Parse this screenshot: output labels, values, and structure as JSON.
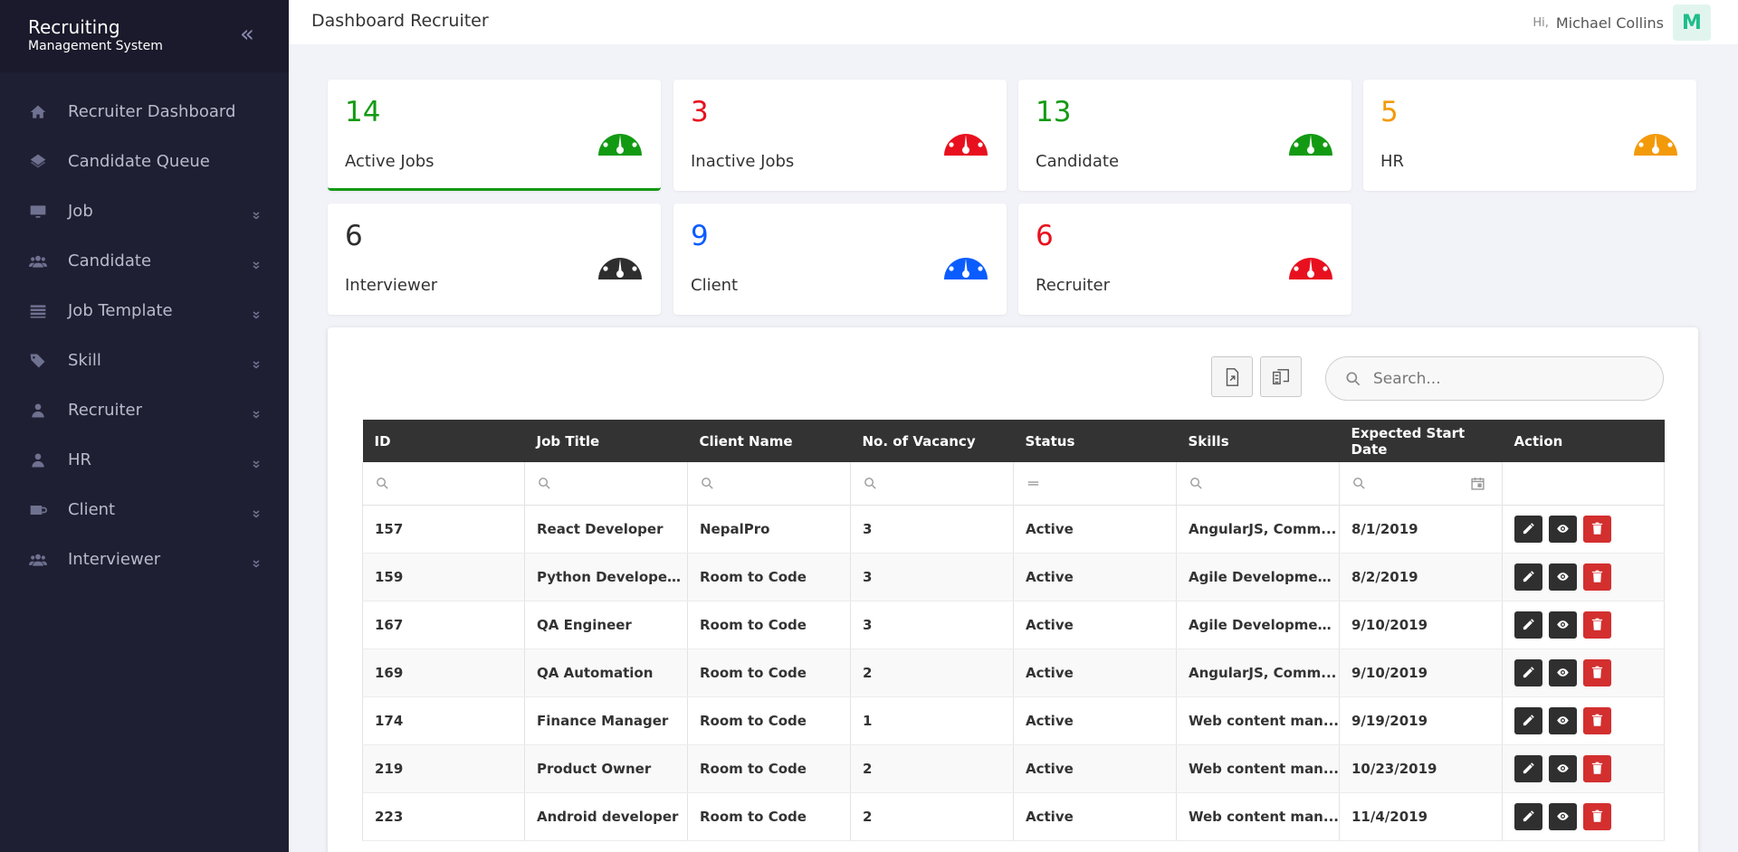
{
  "brand": {
    "title": "Recruiting",
    "subtitle": "Management System"
  },
  "sidebar": {
    "items": [
      {
        "label": "Recruiter Dashboard",
        "icon": "home-icon",
        "expandable": false
      },
      {
        "label": "Candidate Queue",
        "icon": "layers-icon",
        "expandable": false
      },
      {
        "label": "Job",
        "icon": "monitor-icon",
        "expandable": true
      },
      {
        "label": "Candidate",
        "icon": "users-icon",
        "expandable": true
      },
      {
        "label": "Job Template",
        "icon": "template-icon",
        "expandable": true
      },
      {
        "label": "Skill",
        "icon": "tags-icon",
        "expandable": true
      },
      {
        "label": "Recruiter",
        "icon": "user-icon",
        "expandable": true
      },
      {
        "label": "HR",
        "icon": "user-icon",
        "expandable": true
      },
      {
        "label": "Client",
        "icon": "client-icon",
        "expandable": true
      },
      {
        "label": "Interviewer",
        "icon": "users-icon",
        "expandable": true
      }
    ]
  },
  "header": {
    "title": "Dashboard Recruiter",
    "greeting": "Hi,",
    "user_name": "Michael Collins",
    "avatar_letter": "M"
  },
  "stats": [
    {
      "value": "14",
      "label": "Active Jobs",
      "color": "#139a13"
    },
    {
      "value": "3",
      "label": "Inactive Jobs",
      "color": "#e8101e"
    },
    {
      "value": "13",
      "label": "Candidate",
      "color": "#139a13"
    },
    {
      "value": "5",
      "label": "HR",
      "color": "#f39a0a"
    },
    {
      "value": "6",
      "label": "Interviewer",
      "color": "#2e2e2e"
    },
    {
      "value": "9",
      "label": "Client",
      "color": "#0a5cff"
    },
    {
      "value": "6",
      "label": "Recruiter",
      "color": "#e8101e"
    }
  ],
  "search": {
    "placeholder": "Search..."
  },
  "table": {
    "headers": [
      "ID",
      "Job Title",
      "Client Name",
      "No. of Vacancy",
      "Status",
      "Skills",
      "Expected Start Date",
      "Action"
    ],
    "rows": [
      [
        "157",
        "React Developer",
        "NepalPro",
        "3",
        "Active",
        "AngularJS, Comm...",
        "8/1/2019"
      ],
      [
        "159",
        "Python Developer ...",
        "Room to Code",
        "3",
        "Active",
        "Agile Developmen...",
        "8/2/2019"
      ],
      [
        "167",
        "QA Engineer",
        "Room to Code",
        "3",
        "Active",
        "Agile Developmen...",
        "9/10/2019"
      ],
      [
        "169",
        "QA Automation",
        "Room to Code",
        "2",
        "Active",
        "AngularJS, Comm...",
        "9/10/2019"
      ],
      [
        "174",
        "Finance Manager",
        "Room to Code",
        "1",
        "Active",
        "Web content man...",
        "9/19/2019"
      ],
      [
        "219",
        "Product Owner",
        "Room to Code",
        "2",
        "Active",
        "Web content man...",
        "10/23/2019"
      ],
      [
        "223",
        "Android developer",
        "Room to Code",
        "2",
        "Active",
        "Web content man...",
        "11/4/2019"
      ]
    ]
  }
}
